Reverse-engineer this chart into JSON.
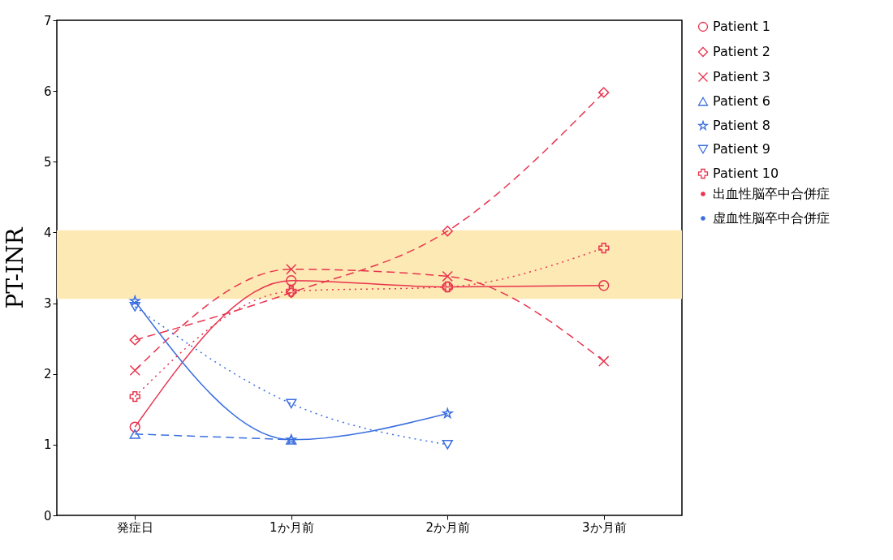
{
  "chart_data": {
    "type": "line",
    "ylabel": "PT-INR",
    "categories": [
      "発症日",
      "1か月前",
      "2か月前",
      "3か月前"
    ],
    "ylim": [
      0,
      7
    ],
    "yticks": [
      0,
      1,
      2,
      3,
      4,
      5,
      6,
      7
    ],
    "grid": false,
    "legend": "top right",
    "annotations": [
      "出血性脳卒中合併症",
      "虚血性脳卒中合併症"
    ],
    "bands": [
      {
        "axis": "y",
        "from": 3.06,
        "to": 4.03,
        "color": "#fde9b4"
      }
    ],
    "series": [
      {
        "name": "Patient 1",
        "color": "#e8344e",
        "marker": "circle",
        "line_style": "solid",
        "values": [
          1.25,
          3.32,
          3.23,
          3.25
        ]
      },
      {
        "name": "Patient 2",
        "color": "#e8344e",
        "marker": "diamond",
        "line_style": "dashed",
        "values": [
          2.48,
          3.15,
          4.02,
          5.98
        ]
      },
      {
        "name": "Patient 3",
        "color": "#e8344e",
        "marker": "cross",
        "line_style": "dashed",
        "values": [
          2.05,
          3.48,
          3.38,
          2.18
        ]
      },
      {
        "name": "Patient 6",
        "color": "#3b6fe0",
        "marker": "triangle",
        "line_style": "dashed",
        "values": [
          1.15,
          1.07,
          null,
          null
        ]
      },
      {
        "name": "Patient 8",
        "color": "#3b6fe0",
        "marker": "star",
        "line_style": "solid",
        "values": [
          3.03,
          1.07,
          1.44,
          null
        ]
      },
      {
        "name": "Patient 9",
        "color": "#3b6fe0",
        "marker": "triangle-down",
        "line_style": "dotted",
        "values": [
          2.95,
          1.58,
          1.0,
          null
        ]
      },
      {
        "name": "Patient 10",
        "color": "#e8344e",
        "marker": "plus",
        "line_style": "dotted",
        "values": [
          1.68,
          3.17,
          3.23,
          3.78
        ]
      }
    ]
  }
}
